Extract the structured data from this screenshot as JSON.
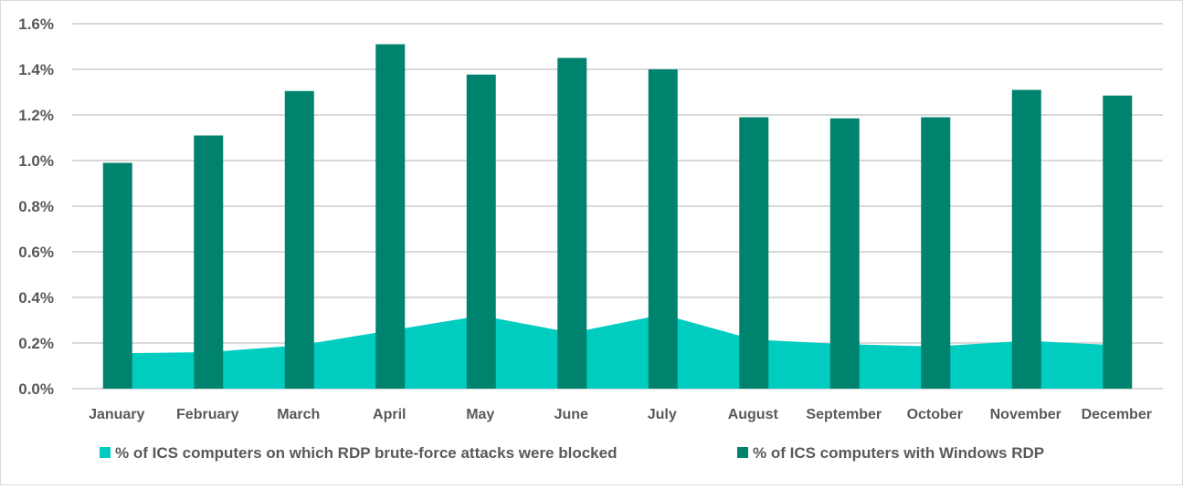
{
  "chart_data": {
    "type": "bar",
    "title": "",
    "xlabel": "",
    "ylabel": "",
    "ylim": [
      0,
      1.6
    ],
    "yticks": [
      "0.0%",
      "0.2%",
      "0.4%",
      "0.6%",
      "0.8%",
      "1.0%",
      "1.2%",
      "1.4%",
      "1.6%"
    ],
    "grid": true,
    "legend_position": "bottom",
    "categories": [
      "January",
      "February",
      "March",
      "April",
      "May",
      "June",
      "July",
      "August",
      "September",
      "October",
      "November",
      "December"
    ],
    "series": [
      {
        "name": "% of ICS computers on which RDP brute-force attacks were blocked",
        "kind": "area",
        "color": "#00CCC0",
        "values": [
          0.155,
          0.16,
          0.19,
          0.255,
          0.32,
          0.245,
          0.325,
          0.215,
          0.195,
          0.185,
          0.21,
          0.19
        ]
      },
      {
        "name": "% of ICS computers with Windows RDP",
        "kind": "bar",
        "color": "#00836E",
        "values": [
          0.99,
          1.11,
          1.305,
          1.51,
          1.377,
          1.45,
          1.4,
          1.19,
          1.185,
          1.19,
          1.31,
          1.285
        ]
      }
    ]
  }
}
